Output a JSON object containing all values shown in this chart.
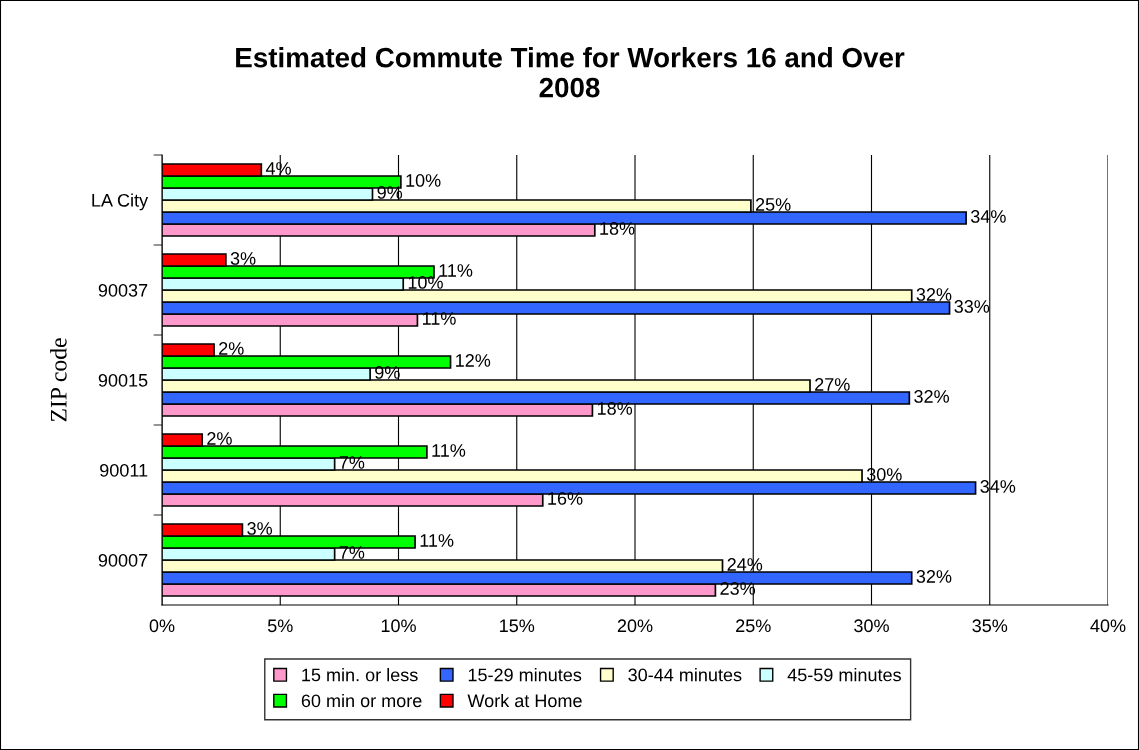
{
  "chart_data": {
    "type": "bar",
    "orientation": "horizontal",
    "title": "Estimated Commute Time for Workers 16 and Over\n2008",
    "ylabel": "ZIP code",
    "categories": [
      "LA City",
      "90037",
      "90015",
      "90011",
      "90007"
    ],
    "series": [
      {
        "name": "15 min. or less",
        "color": "#ff99cc",
        "values": [
          18.3,
          10.8,
          18.2,
          16.1,
          23.4
        ],
        "value_labels": [
          "18%",
          "11%",
          "18%",
          "16%",
          "23%"
        ]
      },
      {
        "name": "15-29 minutes",
        "color": "#3366ff",
        "values": [
          34.0,
          33.3,
          31.6,
          34.4,
          31.7
        ],
        "value_labels": [
          "34%",
          "33%",
          "32%",
          "34%",
          "32%"
        ]
      },
      {
        "name": "30-44 minutes",
        "color": "#ffffcc",
        "values": [
          24.9,
          31.7,
          27.4,
          29.6,
          23.7
        ],
        "value_labels": [
          "25%",
          "32%",
          "27%",
          "30%",
          "24%"
        ]
      },
      {
        "name": "45-59 minutes",
        "color": "#ccffff",
        "values": [
          8.9,
          10.2,
          8.8,
          7.3,
          7.3
        ],
        "value_labels": [
          "9%",
          "10%",
          "9%",
          "7%",
          "7%"
        ]
      },
      {
        "name": "60 min or more",
        "color": "#00ff00",
        "values": [
          10.1,
          11.5,
          12.2,
          11.2,
          10.7
        ],
        "value_labels": [
          "10%",
          "11%",
          "12%",
          "11%",
          "11%"
        ]
      },
      {
        "name": "Work at Home",
        "color": "#ff0000",
        "values": [
          4.2,
          2.7,
          2.2,
          1.7,
          3.4
        ],
        "value_labels": [
          "4%",
          "3%",
          "2%",
          "2%",
          "3%"
        ]
      }
    ],
    "xlim": [
      0,
      40
    ],
    "xticks": [
      {
        "value": 0,
        "label": "0%"
      },
      {
        "value": 5,
        "label": "5%"
      },
      {
        "value": 10,
        "label": "10%"
      },
      {
        "value": 15,
        "label": "15%"
      },
      {
        "value": 20,
        "label": "20%"
      },
      {
        "value": 25,
        "label": "25%"
      },
      {
        "value": 30,
        "label": "30%"
      },
      {
        "value": 35,
        "label": "35%"
      },
      {
        "value": 40,
        "label": "40%"
      }
    ],
    "grid": "x",
    "legend": "bottom"
  }
}
